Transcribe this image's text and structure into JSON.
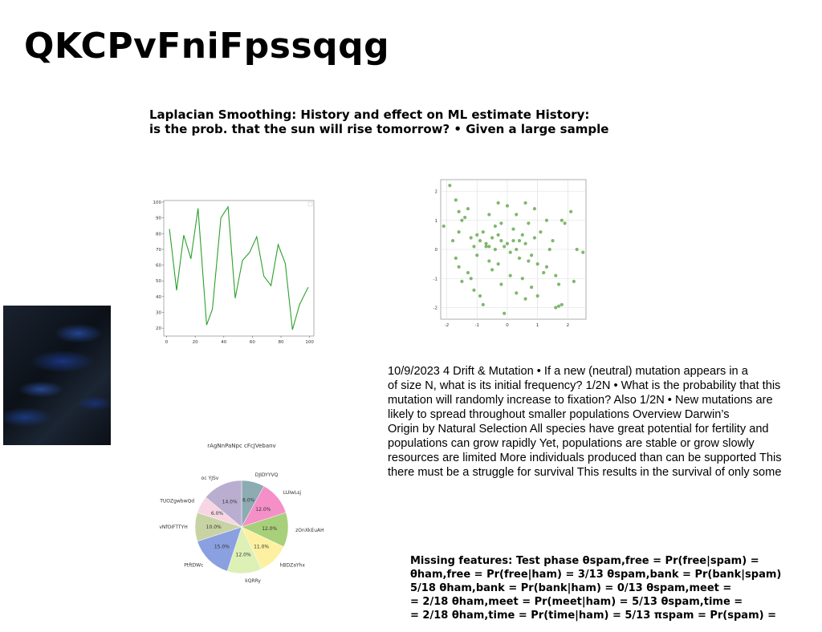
{
  "title": "QKCPvFniFpssqqg",
  "heading_lines": [
    "Laplacian Smoothing: History and effect on ML estimate History:",
    "is the prob. that the sun will rise tomorrow? • Given a large sample"
  ],
  "paragraph_lines": [
    "10/9/2023 4 Drift & Mutation • If a new (neutral) mutation appears in a",
    "of size N, what is its initial frequency? 1/2N • What is the probability that this",
    "mutation will randomly increase to fixation? Also 1/2N • New mutations are",
    "likely to spread throughout smaller populations Overview Darwin’s",
    "Origin by Natural Selection All species have great potential for fertility and",
    "populations can grow rapidly Yet, populations are stable or grow slowly",
    "resources are limited More individuals produced than can be supported This",
    "there must be a struggle for survival This results in the survival of only some"
  ],
  "missing_lines": [
    "Missing features: Test phase θspam,free = Pr(free|spam) =",
    "θham,free = Pr(free|ham) = 3/13 θspam,bank = Pr(bank|spam)",
    "5/18 θham,bank = Pr(bank|ham) = 0/13 θspam,meet =",
    "= 2/18 θham,meet = Pr(meet|ham) = 5/13 θspam,time =",
    "= 2/18 θham,time = Pr(time|ham) = 5/13 πspam = Pr(spam) ="
  ],
  "chart_data": [
    {
      "type": "line",
      "x": [
        0,
        3,
        7,
        10,
        13,
        17,
        20,
        23,
        27,
        30,
        34,
        37,
        41,
        44,
        47,
        51,
        54,
        58,
        61,
        64,
        68,
        71,
        75,
        78,
        81,
        85,
        88,
        91,
        95,
        98,
        100
      ],
      "y": [
        83,
        44,
        79,
        64,
        96,
        22,
        32,
        90,
        97,
        39,
        63,
        68,
        78,
        53,
        47,
        73,
        61,
        19,
        35,
        46,
        46,
        46,
        46,
        46,
        46,
        46,
        46,
        46,
        46,
        46,
        46
      ],
      "points": [
        [
          2,
          83
        ],
        [
          7,
          44
        ],
        [
          12,
          79
        ],
        [
          17,
          64
        ],
        [
          22,
          96
        ],
        [
          28,
          22
        ],
        [
          32,
          32
        ],
        [
          38,
          90
        ],
        [
          43,
          97
        ],
        [
          48,
          39
        ],
        [
          53,
          63
        ],
        [
          58,
          68
        ],
        [
          63,
          78
        ],
        [
          68,
          53
        ],
        [
          73,
          47
        ],
        [
          78,
          73
        ],
        [
          83,
          61
        ],
        [
          88,
          19
        ],
        [
          93,
          35
        ],
        [
          99,
          46
        ]
      ],
      "xlim": [
        -2,
        103
      ],
      "ylim": [
        15,
        101
      ],
      "xticks": [
        0,
        20,
        40,
        60,
        80,
        100
      ],
      "yticks": [
        20,
        30,
        40,
        50,
        60,
        70,
        80,
        90,
        100
      ],
      "color": "#2ca02c",
      "grid": false
    },
    {
      "type": "scatter",
      "points": [
        [
          -2.1,
          0.8
        ],
        [
          -1.9,
          2.2
        ],
        [
          -1.7,
          1.7
        ],
        [
          -1.6,
          1.3
        ],
        [
          -1.5,
          1.0
        ],
        [
          -1.4,
          1.1
        ],
        [
          -1.8,
          0.3
        ],
        [
          -1.7,
          -0.3
        ],
        [
          -1.6,
          -0.6
        ],
        [
          -1.5,
          -1.1
        ],
        [
          -1.3,
          -0.8
        ],
        [
          -1.6,
          0.6
        ],
        [
          -1.2,
          0.4
        ],
        [
          -1.1,
          0.1
        ],
        [
          -1.0,
          0.5
        ],
        [
          -0.9,
          0.3
        ],
        [
          -0.8,
          0.6
        ],
        [
          -0.7,
          0.2
        ],
        [
          -0.6,
          0.1
        ],
        [
          -0.5,
          0.4
        ],
        [
          -0.4,
          0.8
        ],
        [
          -0.3,
          0.5
        ],
        [
          -0.2,
          0.3
        ],
        [
          -0.1,
          0.1
        ],
        [
          0.0,
          0.2
        ],
        [
          0.1,
          -0.1
        ],
        [
          0.2,
          0.3
        ],
        [
          0.3,
          0.0
        ],
        [
          0.4,
          -0.3
        ],
        [
          0.5,
          0.5
        ],
        [
          0.6,
          0.2
        ],
        [
          0.7,
          -0.4
        ],
        [
          0.8,
          -0.2
        ],
        [
          0.9,
          0.4
        ],
        [
          1.0,
          -0.5
        ],
        [
          1.1,
          0.6
        ],
        [
          1.2,
          -0.8
        ],
        [
          1.3,
          -0.6
        ],
        [
          1.4,
          0.0
        ],
        [
          1.5,
          0.3
        ],
        [
          1.6,
          -0.9
        ],
        [
          1.7,
          -1.2
        ],
        [
          1.8,
          1.0
        ],
        [
          1.9,
          0.9
        ],
        [
          2.1,
          1.3
        ],
        [
          2.2,
          -1.1
        ],
        [
          2.3,
          0.0
        ],
        [
          2.5,
          -0.1
        ],
        [
          -1.2,
          -1.0
        ],
        [
          -1.1,
          -1.4
        ],
        [
          -0.9,
          -1.6
        ],
        [
          -0.8,
          -1.9
        ],
        [
          -0.6,
          -0.4
        ],
        [
          -0.5,
          -0.7
        ],
        [
          -0.3,
          -0.5
        ],
        [
          -0.2,
          -1.2
        ],
        [
          -0.1,
          -2.2
        ],
        [
          0.1,
          -0.9
        ],
        [
          0.3,
          -1.5
        ],
        [
          0.5,
          -1.0
        ],
        [
          0.6,
          -1.7
        ],
        [
          0.8,
          -1.3
        ],
        [
          1.0,
          -1.6
        ],
        [
          1.6,
          -2.0
        ],
        [
          1.7,
          -1.95
        ],
        [
          1.8,
          -1.9
        ],
        [
          -0.6,
          1.2
        ],
        [
          -0.3,
          1.6
        ],
        [
          0.0,
          1.5
        ],
        [
          0.3,
          1.2
        ],
        [
          0.6,
          1.6
        ],
        [
          0.9,
          1.4
        ],
        [
          1.3,
          1.0
        ],
        [
          -1.3,
          1.4
        ],
        [
          -0.7,
          0.1
        ],
        [
          0.2,
          0.7
        ],
        [
          -0.4,
          0.0
        ],
        [
          0.7,
          0.9
        ],
        [
          -1.0,
          -0.2
        ],
        [
          0.4,
          0.3
        ],
        [
          -0.2,
          0.9
        ]
      ],
      "xlim": [
        -2.2,
        2.6
      ],
      "ylim": [
        -2.4,
        2.4
      ],
      "xticks": [
        -2,
        -1,
        0,
        1,
        2
      ],
      "yticks": [
        -2,
        -1,
        0,
        1,
        2
      ],
      "color": "#6aaa55",
      "grid": true
    },
    {
      "type": "pie",
      "title": "rAgNnPaNpc cFcJVebanv",
      "labels": [
        "DJIDYYVQ",
        "LUIwLsj",
        "zOnXkEuAH",
        "hBDZaYhx",
        "kQRRy",
        "PtftDWc",
        "vNfOIFTTYH",
        "TUOZgwbwQd",
        "oc YJSv"
      ],
      "values": [
        8.0,
        12.0,
        12.0,
        11.0,
        12.0,
        15.0,
        10.0,
        6.0,
        14.0
      ],
      "value_labels": [
        "8.0%",
        "12.0%",
        "12.0%",
        "11.0%",
        "12.0%",
        "15.0%",
        "10.0%",
        "6.0%",
        "14.0%"
      ],
      "colors": [
        "#8dabb3",
        "#f48fc7",
        "#a8cf7a",
        "#fdf0a0",
        "#ddf0b5",
        "#8aa0e0",
        "#c8d3a4",
        "#f7d5e3",
        "#b9aed0"
      ]
    }
  ]
}
